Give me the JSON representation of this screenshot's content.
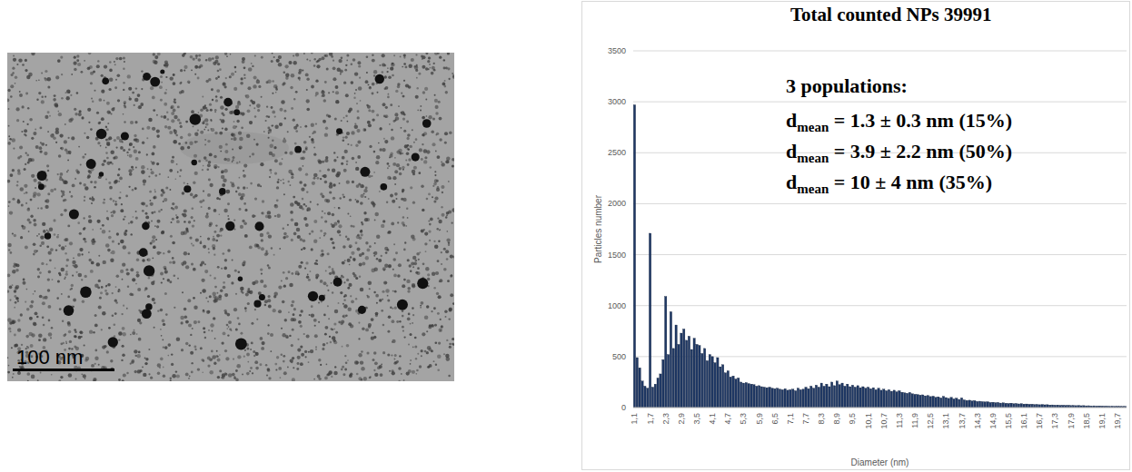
{
  "chart_data": {
    "type": "bar",
    "title": "Total counted NPs 39991",
    "annotations": [
      {
        "text": "3 populations:"
      },
      {
        "base": "d",
        "sub": "mean",
        "text": " = 1.3 ± 0.3 nm (15%)"
      },
      {
        "base": "d",
        "sub": "mean",
        "text": " = 3.9 ± 2.2 nm (50%)"
      },
      {
        "base": "d",
        "sub": "mean",
        "text": " = 10 ± 4 nm (35%)"
      }
    ],
    "x_label": "Diameter (nm)",
    "y_label": "Particles number",
    "categories": [
      "1,1",
      null,
      null,
      null,
      null,
      null,
      "1,7",
      null,
      null,
      null,
      null,
      null,
      "2,3",
      null,
      null,
      null,
      null,
      null,
      "2,9",
      null,
      null,
      null,
      null,
      null,
      "3,5",
      null,
      null,
      null,
      null,
      null,
      "4,1",
      null,
      null,
      null,
      null,
      null,
      "4,7",
      null,
      null,
      null,
      null,
      null,
      "5,3",
      null,
      null,
      null,
      null,
      null,
      "5,9",
      null,
      null,
      null,
      null,
      null,
      "6,5",
      null,
      null,
      null,
      null,
      null,
      "7,1",
      null,
      null,
      null,
      null,
      null,
      "7,7",
      null,
      null,
      null,
      null,
      null,
      "8,3",
      null,
      null,
      null,
      null,
      null,
      "8,9",
      null,
      null,
      null,
      null,
      null,
      "9,5",
      null,
      null,
      null,
      null,
      null,
      "10,1",
      null,
      null,
      null,
      null,
      null,
      "10,7",
      null,
      null,
      null,
      null,
      null,
      "11,3",
      null,
      null,
      null,
      null,
      null,
      "11,9",
      null,
      null,
      null,
      null,
      null,
      "12,5",
      null,
      null,
      null,
      null,
      null,
      "13,1",
      null,
      null,
      null,
      null,
      null,
      "13,7",
      null,
      null,
      null,
      null,
      null,
      "14,3",
      null,
      null,
      null,
      null,
      null,
      "14,9",
      null,
      null,
      null,
      null,
      null,
      "15,5",
      null,
      null,
      null,
      null,
      null,
      "16,1",
      null,
      null,
      null,
      null,
      null,
      "16,7",
      null,
      null,
      null,
      null,
      null,
      "17,3",
      null,
      null,
      null,
      null,
      null,
      "17,9",
      null,
      null,
      null,
      null,
      null,
      "18,5",
      null,
      null,
      null,
      null,
      null,
      "19,1",
      null,
      null,
      null,
      null,
      null,
      "19,7",
      null,
      null,
      null
    ],
    "values": [
      2970,
      490,
      390,
      260,
      210,
      190,
      1710,
      200,
      230,
      290,
      330,
      470,
      1090,
      520,
      940,
      580,
      810,
      620,
      730,
      770,
      660,
      700,
      570,
      680,
      620,
      610,
      530,
      580,
      460,
      520,
      500,
      440,
      490,
      400,
      420,
      340,
      360,
      300,
      310,
      280,
      290,
      250,
      240,
      245,
      235,
      230,
      225,
      210,
      215,
      205,
      200,
      195,
      200,
      190,
      185,
      190,
      180,
      175,
      185,
      170,
      175,
      180,
      165,
      190,
      175,
      180,
      200,
      185,
      210,
      190,
      220,
      200,
      240,
      210,
      230,
      205,
      250,
      215,
      260,
      225,
      240,
      210,
      230,
      205,
      220,
      200,
      215,
      195,
      205,
      190,
      200,
      185,
      195,
      175,
      190,
      170,
      180,
      165,
      175,
      160,
      170,
      155,
      165,
      150,
      145,
      140,
      148,
      135,
      130,
      128,
      122,
      125,
      115,
      118,
      108,
      112,
      100,
      105,
      95,
      110,
      98,
      90,
      100,
      85,
      92,
      80,
      95,
      75,
      70,
      72,
      65,
      68,
      60,
      62,
      58,
      55,
      57,
      50,
      52,
      48,
      50,
      44,
      46,
      42,
      40,
      43,
      38,
      40,
      36,
      38,
      34,
      35,
      32,
      33,
      30,
      31,
      28,
      30,
      27,
      28,
      25,
      26,
      24,
      25,
      22,
      23,
      21,
      22,
      20,
      21,
      19,
      20,
      18,
      19,
      17,
      18,
      16,
      17,
      15,
      16,
      15,
      14,
      15,
      13,
      14,
      12,
      13,
      12,
      11,
      12
    ],
    "color": "#1f3864",
    "ylim": [
      0,
      3500
    ],
    "yticks": [
      0,
      500,
      1000,
      1500,
      2000,
      2500,
      3000,
      3500
    ],
    "grid": true
  },
  "image": {
    "scale_bar_label": "100 nm"
  }
}
